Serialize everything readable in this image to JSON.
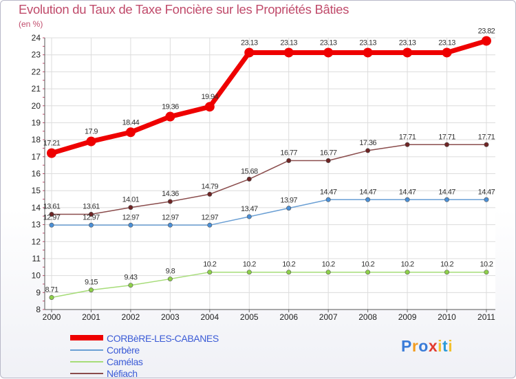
{
  "header": {
    "title": "Evolution du Taux de Taxe Foncière sur les Propriétés Bâties",
    "unit": "(en %)"
  },
  "logo": {
    "letters": [
      "P",
      "r",
      "o",
      "x",
      "i",
      "t",
      "i"
    ],
    "colors": [
      "#3a7cd8",
      "#f29b1e",
      "#3a7cd8",
      "#e23b2e",
      "#f2c12e",
      "#2a9ad8",
      "#f2c12e"
    ]
  },
  "chart_data": {
    "type": "line",
    "title": "Evolution du Taux de Taxe Foncière sur les Propriétés Bâties",
    "ylabel": "(en %)",
    "xlabel": "",
    "x": [
      "2000",
      "2001",
      "2002",
      "2003",
      "2004",
      "2005",
      "2006",
      "2007",
      "2008",
      "2009",
      "2010",
      "2011"
    ],
    "ylim": [
      8,
      24
    ],
    "yticks": [
      8,
      9,
      10,
      11,
      12,
      13,
      14,
      15,
      16,
      17,
      18,
      19,
      20,
      21,
      22,
      23,
      24
    ],
    "grid": true,
    "series": [
      {
        "name": "CORBèRE-LES-CABANES",
        "color": "#ee0000",
        "marker": "#ee0000",
        "values": [
          17.21,
          17.9,
          18.44,
          19.36,
          19.94,
          23.13,
          23.13,
          23.13,
          23.13,
          23.13,
          23.13,
          23.82
        ],
        "labels": [
          "17.21",
          "17.9",
          "18.44",
          "19.36",
          "19.94",
          "23.13",
          "23.13",
          "23.13",
          "23.13",
          "23.13",
          "23.13",
          "23.82"
        ]
      },
      {
        "name": "Corbère",
        "color": "#6a9fd4",
        "marker": "#4a8fd6",
        "values": [
          12.97,
          12.97,
          12.97,
          12.97,
          12.97,
          13.47,
          13.97,
          14.47,
          14.47,
          14.47,
          14.47,
          14.47
        ],
        "labels": [
          "12.97",
          "12.97",
          "12.97",
          "12.97",
          "12.97",
          "13.47",
          "13.97",
          "14.47",
          "14.47",
          "14.47",
          "14.47",
          "14.47"
        ]
      },
      {
        "name": "Camélas",
        "color": "#a6dc78",
        "marker": "#8ed04a",
        "values": [
          8.71,
          9.15,
          9.43,
          9.8,
          10.2,
          10.2,
          10.2,
          10.2,
          10.2,
          10.2,
          10.2,
          10.2
        ],
        "labels": [
          "8.71",
          "9.15",
          "9.43",
          "9.8",
          "10.2",
          "10.2",
          "10.2",
          "10.2",
          "10.2",
          "10.2",
          "10.2",
          "10.2"
        ]
      },
      {
        "name": "Néfiach",
        "color": "#8a4c4c",
        "marker": "#6e2424",
        "values": [
          13.61,
          13.61,
          14.01,
          14.36,
          14.79,
          15.68,
          16.77,
          16.77,
          17.36,
          17.71,
          17.71,
          17.71
        ],
        "labels": [
          "13.61",
          "13.61",
          "14.01",
          "14.36",
          "14.79",
          "15.68",
          "16.77",
          "16.77",
          "17.36",
          "17.71",
          "17.71",
          "17.71"
        ]
      }
    ]
  }
}
